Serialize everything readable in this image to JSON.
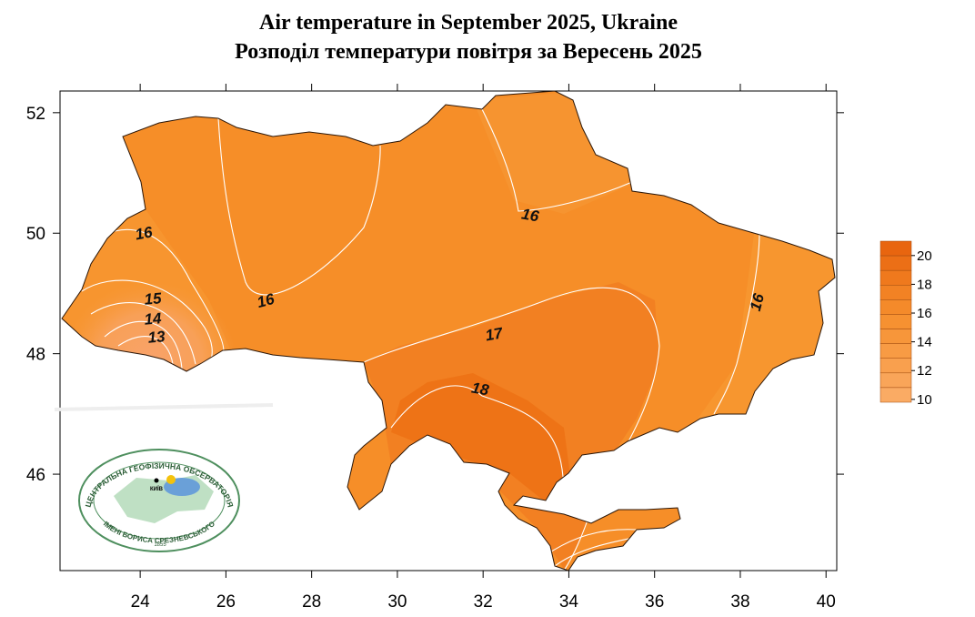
{
  "title": "Air temperature in September 2025, Ukraine",
  "subtitle": "Розподіл температури повітря за Вересень 2025",
  "map": {
    "xlim": [
      22.13,
      40.25
    ],
    "ylim": [
      44.4,
      52.36
    ],
    "xticks": [
      24,
      26,
      28,
      30,
      32,
      34,
      36,
      38,
      40
    ],
    "yticks": [
      46,
      48,
      50,
      52
    ],
    "isotherm_labels": [
      16,
      15,
      14,
      13,
      16,
      16,
      17,
      18,
      16
    ]
  },
  "legend": {
    "range": [
      9.8,
      21
    ],
    "ticks": [
      20,
      18,
      16,
      14,
      12,
      10
    ],
    "colors": [
      "#e8650f",
      "#ec6f16",
      "#ef791d",
      "#f28224",
      "#f48a2a",
      "#f69131",
      "#f7963a",
      "#f89b44",
      "#f9a04e",
      "#f9a559",
      "#faab64"
    ]
  },
  "logo": {
    "top": "ЦЕНТРАЛЬНА ГЕОФІЗИЧНА ОБСЕРВАТОРІЯ",
    "bottom": "ІМЕНІ БОРИСА СРЕЗНЕВСЬКОГО",
    "year": "1855",
    "city": "КИЇВ"
  }
}
